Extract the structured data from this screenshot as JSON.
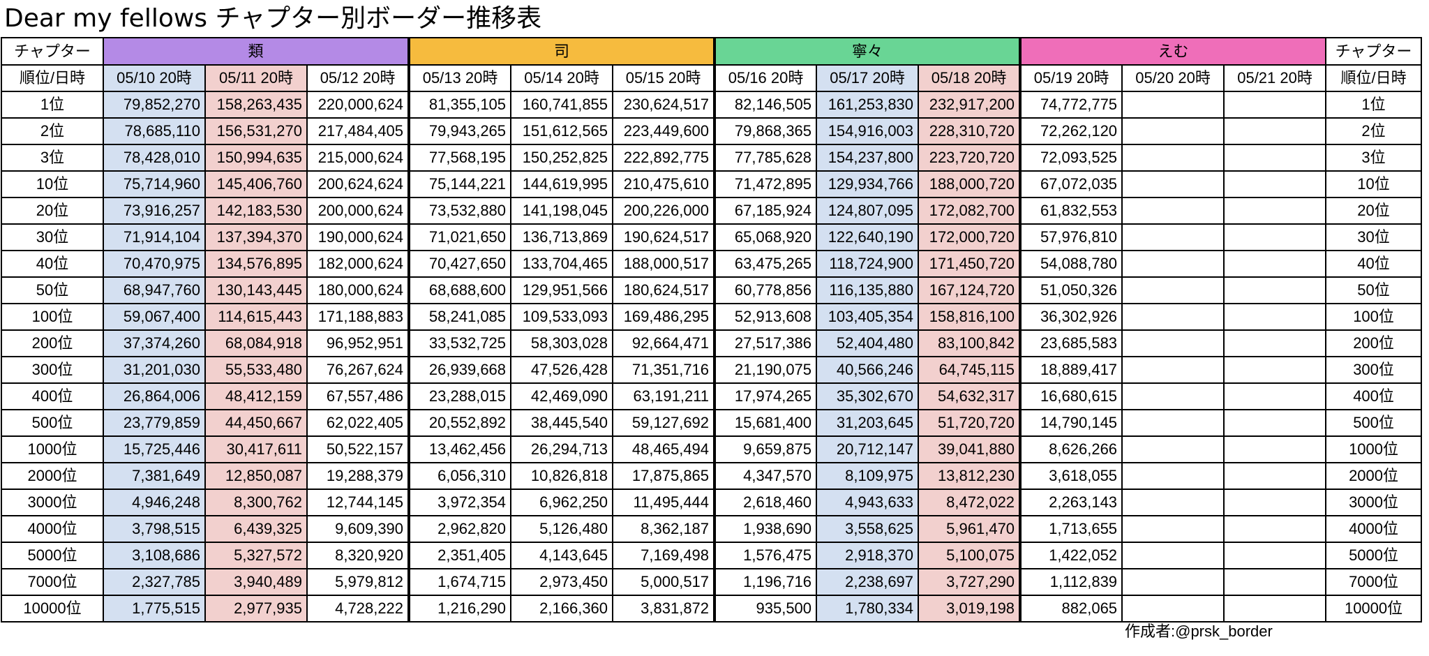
{
  "title": "Dear my fellows チャプター別ボーダー推移表",
  "header": {
    "corner_label": "チャプター",
    "corner_sub": "順位/日時",
    "chapters": [
      {
        "name": "類",
        "color": "#b48ae6",
        "span": 3
      },
      {
        "name": "司",
        "color": "#f6bb3e",
        "span": 3
      },
      {
        "name": "寧々",
        "color": "#69d595",
        "span": 3
      },
      {
        "name": "えむ",
        "color": "#ef6eb9",
        "span": 3
      }
    ],
    "dates": [
      "05/10 20時",
      "05/11 20時",
      "05/12 20時",
      "05/13 20時",
      "05/14 20時",
      "05/15 20時",
      "05/16 20時",
      "05/17 20時",
      "05/18 20時",
      "05/19 20時",
      "05/20 20時",
      "05/21 20時"
    ],
    "highlight_colors": {
      "blue": "#d4e0f1",
      "red": "#f2d0ce"
    }
  },
  "rows": [
    {
      "rank": "1位",
      "values": [
        "79,852,270",
        "158,263,435",
        "220,000,624",
        "81,355,105",
        "160,741,855",
        "230,624,517",
        "82,146,505",
        "161,253,830",
        "232,917,200",
        "74,772,775",
        "",
        ""
      ]
    },
    {
      "rank": "2位",
      "values": [
        "78,685,110",
        "156,531,270",
        "217,484,405",
        "79,943,265",
        "151,612,565",
        "223,449,600",
        "79,868,365",
        "154,916,003",
        "228,310,720",
        "72,262,120",
        "",
        ""
      ]
    },
    {
      "rank": "3位",
      "values": [
        "78,428,010",
        "150,994,635",
        "215,000,624",
        "77,568,195",
        "150,252,825",
        "222,892,775",
        "77,785,628",
        "154,237,800",
        "223,720,720",
        "72,093,525",
        "",
        ""
      ]
    },
    {
      "rank": "10位",
      "values": [
        "75,714,960",
        "145,406,760",
        "200,624,624",
        "75,144,221",
        "144,619,995",
        "210,475,610",
        "71,472,895",
        "129,934,766",
        "188,000,720",
        "67,072,035",
        "",
        ""
      ]
    },
    {
      "rank": "20位",
      "values": [
        "73,916,257",
        "142,183,530",
        "200,000,624",
        "73,532,880",
        "141,198,045",
        "200,226,000",
        "67,185,924",
        "124,807,095",
        "172,082,700",
        "61,832,553",
        "",
        ""
      ]
    },
    {
      "rank": "30位",
      "values": [
        "71,914,104",
        "137,394,370",
        "190,000,624",
        "71,021,650",
        "136,713,869",
        "190,624,517",
        "65,068,920",
        "122,640,190",
        "172,000,720",
        "57,976,810",
        "",
        ""
      ]
    },
    {
      "rank": "40位",
      "values": [
        "70,470,975",
        "134,576,895",
        "182,000,624",
        "70,427,650",
        "133,704,465",
        "188,000,517",
        "63,475,265",
        "118,724,900",
        "171,450,720",
        "54,088,780",
        "",
        ""
      ]
    },
    {
      "rank": "50位",
      "values": [
        "68,947,760",
        "130,143,445",
        "180,000,624",
        "68,688,600",
        "129,951,566",
        "180,624,517",
        "60,778,856",
        "116,135,880",
        "167,124,720",
        "51,050,326",
        "",
        ""
      ]
    },
    {
      "rank": "100位",
      "values": [
        "59,067,400",
        "114,615,443",
        "171,188,883",
        "58,241,085",
        "109,533,093",
        "169,486,295",
        "52,913,608",
        "103,405,354",
        "158,816,100",
        "36,302,926",
        "",
        ""
      ]
    },
    {
      "rank": "200位",
      "values": [
        "37,374,260",
        "68,084,918",
        "96,952,951",
        "33,532,725",
        "58,303,028",
        "92,664,471",
        "27,517,386",
        "52,404,480",
        "83,100,842",
        "23,685,583",
        "",
        ""
      ]
    },
    {
      "rank": "300位",
      "values": [
        "31,201,030",
        "55,533,480",
        "76,267,624",
        "26,939,668",
        "47,526,428",
        "71,351,716",
        "21,190,075",
        "40,566,246",
        "64,745,115",
        "18,889,417",
        "",
        ""
      ]
    },
    {
      "rank": "400位",
      "values": [
        "26,864,006",
        "48,412,159",
        "67,557,486",
        "23,288,015",
        "42,469,090",
        "63,191,211",
        "17,974,265",
        "35,302,670",
        "54,632,317",
        "16,680,615",
        "",
        ""
      ]
    },
    {
      "rank": "500位",
      "values": [
        "23,779,859",
        "44,450,667",
        "62,022,405",
        "20,552,892",
        "38,445,540",
        "59,127,692",
        "15,681,400",
        "31,203,645",
        "51,720,720",
        "14,790,145",
        "",
        ""
      ]
    },
    {
      "rank": "1000位",
      "values": [
        "15,725,446",
        "30,417,611",
        "50,522,157",
        "13,462,456",
        "26,294,713",
        "48,465,494",
        "9,659,875",
        "20,712,147",
        "39,041,880",
        "8,626,266",
        "",
        ""
      ]
    },
    {
      "rank": "2000位",
      "values": [
        "7,381,649",
        "12,850,087",
        "19,288,379",
        "6,056,310",
        "10,826,818",
        "17,875,865",
        "4,347,570",
        "8,109,975",
        "13,812,230",
        "3,618,055",
        "",
        ""
      ]
    },
    {
      "rank": "3000位",
      "values": [
        "4,946,248",
        "8,300,762",
        "12,744,145",
        "3,972,354",
        "6,962,250",
        "11,495,444",
        "2,618,460",
        "4,943,633",
        "8,472,022",
        "2,263,143",
        "",
        ""
      ]
    },
    {
      "rank": "4000位",
      "values": [
        "3,798,515",
        "6,439,325",
        "9,609,390",
        "2,962,820",
        "5,126,480",
        "8,362,187",
        "1,938,690",
        "3,558,625",
        "5,961,470",
        "1,713,655",
        "",
        ""
      ]
    },
    {
      "rank": "5000位",
      "values": [
        "3,108,686",
        "5,327,572",
        "8,320,920",
        "2,351,405",
        "4,143,645",
        "7,169,498",
        "1,576,475",
        "2,918,370",
        "5,100,075",
        "1,422,052",
        "",
        ""
      ]
    },
    {
      "rank": "7000位",
      "values": [
        "2,327,785",
        "3,940,489",
        "5,979,812",
        "1,674,715",
        "2,973,450",
        "5,000,517",
        "1,196,716",
        "2,238,697",
        "3,727,290",
        "1,112,839",
        "",
        ""
      ]
    },
    {
      "rank": "10000位",
      "values": [
        "1,775,515",
        "2,977,935",
        "4,728,222",
        "1,216,290",
        "2,166,360",
        "3,831,872",
        "935,500",
        "1,780,334",
        "3,019,198",
        "882,065",
        "",
        ""
      ]
    }
  ],
  "credit": "作成者:@prsk_border"
}
